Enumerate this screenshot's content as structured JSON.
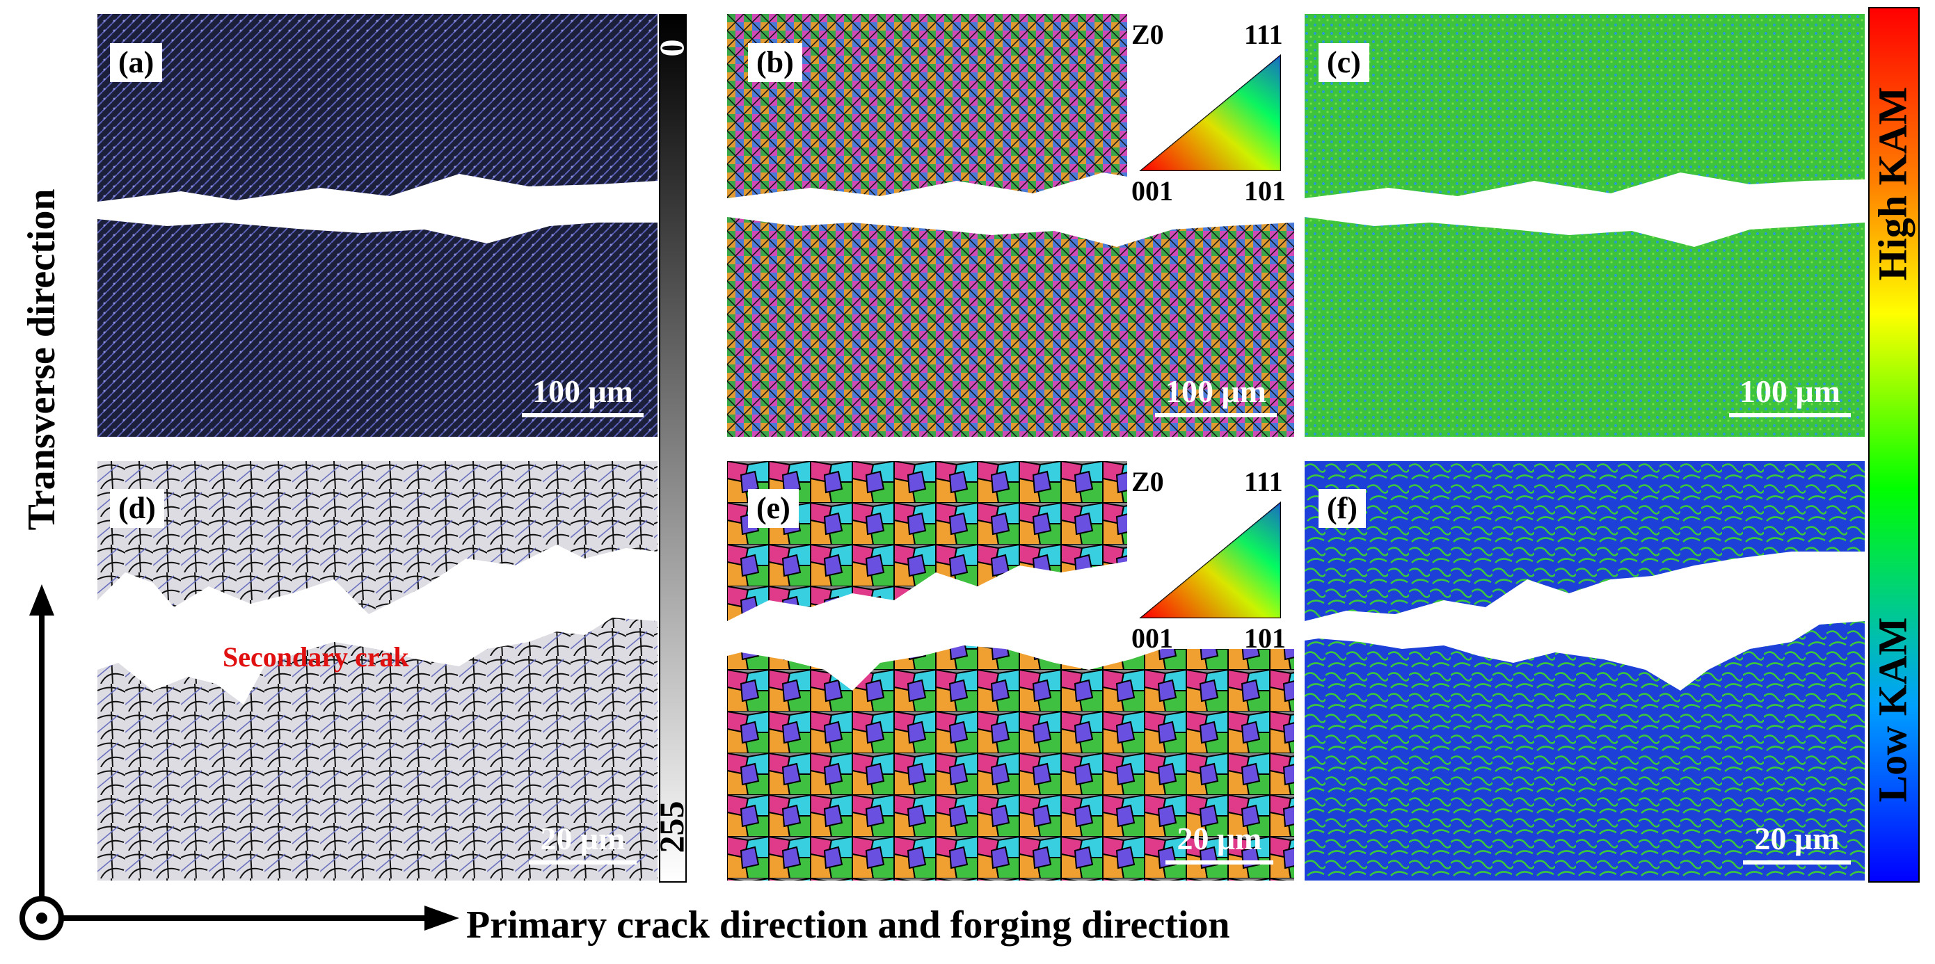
{
  "panels": {
    "a": {
      "label": "(a)",
      "scale": "100 μm"
    },
    "b": {
      "label": "(b)",
      "scale": "100 μm"
    },
    "c": {
      "label": "(c)",
      "scale": "100 μm"
    },
    "d": {
      "label": "(d)",
      "scale": "20 μm",
      "annotation": "Secondary crak"
    },
    "e": {
      "label": "(e)",
      "scale": "20 μm"
    },
    "f": {
      "label": "(f)",
      "scale": "20 μm"
    }
  },
  "ipf_key": {
    "z": "Z0",
    "corner_top": "111",
    "corner_left": "001",
    "corner_right": "101"
  },
  "grey_scale": {
    "top": "0",
    "bottom": "255"
  },
  "kam_scale": {
    "high": "High KAM",
    "low": "Low KAM"
  },
  "axes": {
    "vertical": "Transverse direction",
    "horizontal": "Primary crack direction and forging direction"
  },
  "colors": {
    "crack": "#ffffff",
    "grain_boundary": "#000000",
    "kam_low": "#1a3cd8",
    "kam_mid": "#3cc83c",
    "annotation": "#e01010"
  }
}
